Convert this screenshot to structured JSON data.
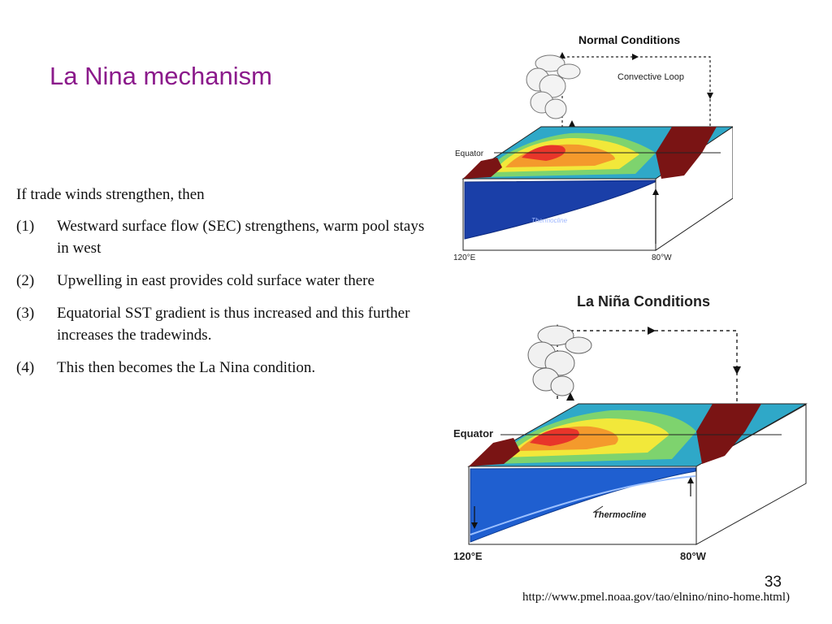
{
  "slide": {
    "title": "La Nina mechanism",
    "intro": "If trade winds strengthen, then",
    "items": [
      {
        "num": "(1)",
        "text": "Westward surface flow (SEC) strengthens, warm pool stays in west"
      },
      {
        "num": "(2)",
        "text": "Upwelling in east provides cold surface water there"
      },
      {
        "num": "(3)",
        "text": "Equatorial SST gradient is thus increased  and this further increases  the tradewinds."
      },
      {
        "num": "(4)",
        "text": "This then becomes the La Nina condition."
      }
    ],
    "page_number": "33",
    "source_url": "http://www.pmel.noaa.gov/tao/elnino/nino-home.html)"
  },
  "figures": {
    "normal": {
      "title": "Normal Conditions",
      "loop_label": "Convective Loop",
      "equator_label": "Equator",
      "thermocline_label": "Thermocline",
      "left_longitude": "120°E",
      "right_longitude": "80°W"
    },
    "lanina": {
      "title": "La Niña Conditions",
      "equator_label": "Equator",
      "thermocline_label": "Thermocline",
      "left_longitude": "120°E",
      "right_longitude": "80°W"
    }
  }
}
